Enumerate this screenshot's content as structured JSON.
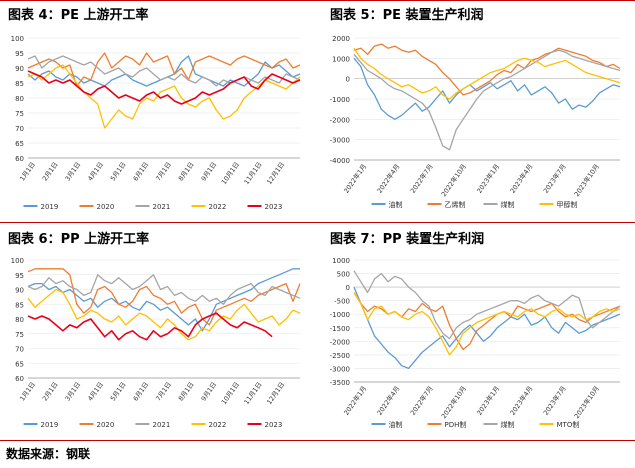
{
  "titles": {
    "c4": "图表 4：PE 上游开工率",
    "c5": "图表 5：PE 装置生产利润",
    "c6": "图表 6：PP 上游开工率",
    "c7": "图表 7：PP 装置生产利润"
  },
  "source": "数据来源：钢联",
  "chart_data": [
    {
      "id": "c4",
      "type": "line",
      "title": "图表 4：PE 上游开工率",
      "ylim": [
        60,
        100
      ],
      "yticks": [
        "60",
        "65",
        "70",
        "75",
        "80",
        "85",
        "90",
        "95",
        "100"
      ],
      "xticks": [
        "1月1日",
        "2月1日",
        "3月1日",
        "4月1日",
        "5月1日",
        "6月1日",
        "7月1日",
        "8月1日",
        "9月1日",
        "10月1日",
        "11月1日",
        "12月1日"
      ],
      "series": [
        {
          "name": "2019",
          "color": "#5B9BD5",
          "values": [
            88,
            86,
            88,
            89,
            87,
            86,
            88,
            87,
            85,
            86,
            85,
            84,
            86,
            87,
            88,
            86,
            85,
            84,
            85,
            86,
            87,
            88,
            92,
            94,
            88,
            87,
            86,
            85,
            84,
            86,
            85,
            84,
            86,
            88,
            92,
            90,
            91,
            89,
            87,
            88
          ]
        },
        {
          "name": "2020",
          "color": "#ED7D31",
          "values": [
            90,
            91,
            92,
            93,
            92,
            90,
            91,
            84,
            87,
            86,
            92,
            95,
            90,
            92,
            94,
            93,
            91,
            95,
            92,
            93,
            94,
            88,
            90,
            86,
            92,
            93,
            94,
            93,
            92,
            91,
            93,
            94,
            93,
            92,
            91,
            90,
            92,
            93,
            90,
            91
          ]
        },
        {
          "name": "2021",
          "color": "#A5A5A5",
          "values": [
            93,
            94,
            90,
            92,
            93,
            94,
            93,
            92,
            91,
            92,
            90,
            88,
            89,
            90,
            88,
            87,
            89,
            90,
            88,
            86,
            87,
            86,
            88,
            86,
            85,
            87,
            86,
            84,
            86,
            85,
            86,
            87,
            86,
            85,
            87,
            86,
            85,
            88,
            87,
            86
          ]
        },
        {
          "name": "2022",
          "color": "#FFC000",
          "values": [
            87,
            88,
            86,
            88,
            90,
            91,
            88,
            85,
            82,
            80,
            78,
            70,
            73,
            76,
            74,
            73,
            78,
            80,
            79,
            82,
            83,
            84,
            80,
            78,
            77,
            79,
            80,
            76,
            73,
            74,
            76,
            80,
            82,
            84,
            86,
            85,
            84,
            83,
            85,
            87
          ]
        },
        {
          "name": "2023",
          "color": "#E8001C",
          "values": [
            89,
            88,
            87,
            85,
            86,
            85,
            86,
            84,
            82,
            81,
            83,
            84,
            82,
            80,
            81,
            80,
            79,
            81,
            82,
            80,
            81,
            79,
            78,
            79,
            80,
            82,
            81,
            82,
            83,
            85,
            86,
            87,
            84,
            83,
            86,
            88,
            87,
            86,
            85,
            86
          ]
        }
      ]
    },
    {
      "id": "c5",
      "type": "line",
      "title": "图表 5：PE 装置生产利润",
      "ylim": [
        -4000,
        2000
      ],
      "yticks": [
        "-4000",
        "-3000",
        "-2000",
        "-1000",
        "0",
        "1000",
        "2000"
      ],
      "xticks": [
        "2022年1月",
        "2022年4月",
        "2022年7月",
        "2022年10月",
        "2023年1月",
        "2023年4月",
        "2023年7月",
        "2023年10月"
      ],
      "series": [
        {
          "name": "油制",
          "color": "#5B9BD5",
          "values": [
            1000,
            600,
            -300,
            -800,
            -1500,
            -1800,
            -2000,
            -1800,
            -1500,
            -1200,
            -1600,
            -1400,
            -1000,
            -600,
            -1200,
            -800,
            -500,
            -300,
            -600,
            -400,
            -200,
            -500,
            -300,
            -100,
            -600,
            -300,
            -800,
            -600,
            -400,
            -700,
            -1200,
            -1000,
            -1500,
            -1300,
            -1400,
            -1100,
            -700,
            -500,
            -300,
            -400
          ]
        },
        {
          "name": "乙烯制",
          "color": "#ED7D31",
          "values": [
            1400,
            1500,
            1200,
            1600,
            1700,
            1500,
            1600,
            1400,
            1300,
            1400,
            1100,
            900,
            700,
            300,
            0,
            -400,
            -800,
            -700,
            -500,
            -300,
            -100,
            200,
            400,
            300,
            700,
            500,
            900,
            1000,
            1200,
            1300,
            1500,
            1400,
            1300,
            1200,
            1100,
            900,
            800,
            600,
            700,
            500
          ]
        },
        {
          "name": "煤制",
          "color": "#A5A5A5",
          "values": [
            1200,
            800,
            400,
            200,
            0,
            -300,
            -500,
            -600,
            -800,
            -1000,
            -1200,
            -1600,
            -2400,
            -3300,
            -3500,
            -2500,
            -2000,
            -1500,
            -1000,
            -600,
            -400,
            -200,
            0,
            100,
            300,
            500,
            700,
            900,
            1100,
            1300,
            1400,
            1300,
            1100,
            1000,
            900,
            800,
            700,
            600,
            500,
            400
          ]
        },
        {
          "name": "甲醇制",
          "color": "#FFC000",
          "values": [
            1500,
            1000,
            700,
            500,
            200,
            0,
            -200,
            -400,
            -300,
            -500,
            -700,
            -600,
            -400,
            -800,
            -1000,
            -700,
            -500,
            -300,
            -100,
            100,
            300,
            400,
            500,
            700,
            900,
            1000,
            900,
            800,
            600,
            700,
            800,
            900,
            700,
            500,
            300,
            200,
            100,
            0,
            -100,
            -200
          ]
        }
      ]
    },
    {
      "id": "c6",
      "type": "line",
      "title": "图表 6：PP 上游开工率",
      "ylim": [
        60,
        100
      ],
      "yticks": [
        "60",
        "65",
        "70",
        "75",
        "80",
        "85",
        "90",
        "95",
        "100"
      ],
      "xticks": [
        "1月1日",
        "2月1日",
        "3月1日",
        "4月1日",
        "5月1日",
        "6月1日",
        "7月1日",
        "8月1日",
        "9月1日",
        "10月1日",
        "11月1日",
        "12月1日"
      ],
      "series": [
        {
          "name": "2019",
          "color": "#5B9BD5",
          "values": [
            91,
            92,
            92,
            90,
            91,
            89,
            90,
            88,
            86,
            87,
            84,
            86,
            87,
            85,
            86,
            84,
            83,
            86,
            85,
            83,
            84,
            82,
            80,
            78,
            80,
            76,
            80,
            85,
            86,
            87,
            88,
            89,
            90,
            92,
            93,
            94,
            95,
            96,
            97,
            97
          ]
        },
        {
          "name": "2020",
          "color": "#ED7D31",
          "values": [
            96,
            97,
            97,
            97,
            97,
            97,
            95,
            85,
            82,
            84,
            90,
            91,
            89,
            85,
            84,
            86,
            90,
            91,
            88,
            87,
            85,
            86,
            82,
            84,
            85,
            80,
            78,
            83,
            84,
            85,
            86,
            87,
            86,
            88,
            89,
            90,
            91,
            92,
            86,
            92
          ]
        },
        {
          "name": "2021",
          "color": "#A5A5A5",
          "values": [
            91,
            90,
            91,
            94,
            92,
            93,
            91,
            90,
            88,
            89,
            95,
            93,
            92,
            94,
            92,
            90,
            91,
            93,
            95,
            90,
            91,
            88,
            89,
            87,
            86,
            88,
            86,
            87,
            85,
            88,
            90,
            91,
            92,
            89,
            88,
            91,
            90,
            89,
            88,
            87
          ]
        },
        {
          "name": "2022",
          "color": "#FFC000",
          "values": [
            87,
            84,
            86,
            88,
            90,
            89,
            85,
            80,
            81,
            83,
            82,
            80,
            79,
            81,
            78,
            80,
            82,
            81,
            79,
            77,
            80,
            78,
            75,
            73,
            74,
            77,
            76,
            79,
            81,
            80,
            83,
            85,
            82,
            79,
            80,
            81,
            78,
            80,
            83,
            82
          ]
        },
        {
          "name": "2023",
          "color": "#E8001C",
          "values": [
            81,
            80,
            81,
            80,
            78,
            76,
            78,
            77,
            79,
            80,
            77,
            74,
            76,
            73,
            75,
            76,
            74,
            73,
            76,
            74,
            75,
            77,
            76,
            74,
            78,
            80,
            81,
            82,
            80,
            78,
            77,
            79,
            78,
            77,
            76,
            74,
            null,
            null,
            null,
            null
          ]
        }
      ]
    },
    {
      "id": "c7",
      "type": "line",
      "title": "图表 7：PP 装置生产利润",
      "ylim": [
        -3500,
        1000
      ],
      "yticks": [
        "-3500",
        "-3000",
        "-2500",
        "-2000",
        "-1500",
        "-1000",
        "-500",
        "0",
        "500",
        "1000"
      ],
      "xticks": [
        "2022年1月",
        "2022年4月",
        "2022年7月",
        "2022年10月",
        "2023年1月",
        "2023年4月",
        "2023年7月",
        "2023年10月"
      ],
      "series": [
        {
          "name": "油制",
          "color": "#5B9BD5",
          "values": [
            0,
            -600,
            -1200,
            -1800,
            -2100,
            -2400,
            -2600,
            -2900,
            -3000,
            -2700,
            -2400,
            -2200,
            -2000,
            -1800,
            -2200,
            -1900,
            -1600,
            -1400,
            -1700,
            -2000,
            -1800,
            -1500,
            -1300,
            -1100,
            -1200,
            -1000,
            -1400,
            -1300,
            -1100,
            -1500,
            -1700,
            -1300,
            -1500,
            -1700,
            -1600,
            -1400,
            -1300,
            -1200,
            -1100,
            -1000
          ]
        },
        {
          "name": "PDH制",
          "color": "#ED7D31",
          "values": [
            -200,
            -600,
            -900,
            -700,
            -800,
            -1000,
            -900,
            -1100,
            -800,
            -900,
            -600,
            -800,
            -900,
            -700,
            -1400,
            -1900,
            -2300,
            -2100,
            -1600,
            -1400,
            -1200,
            -1000,
            -900,
            -1100,
            -700,
            -800,
            -900,
            -800,
            -700,
            -600,
            -900,
            -1100,
            -1000,
            -1200,
            -1300,
            -1100,
            -1000,
            -900,
            -800,
            -700
          ]
        },
        {
          "name": "煤制",
          "color": "#A5A5A5",
          "values": [
            600,
            200,
            -200,
            300,
            500,
            200,
            400,
            300,
            0,
            -200,
            -500,
            -700,
            -1300,
            -1700,
            -1900,
            -1500,
            -1300,
            -1200,
            -1000,
            -900,
            -800,
            -700,
            -600,
            -500,
            -500,
            -600,
            -400,
            -300,
            -500,
            -600,
            -700,
            -500,
            -300,
            -400,
            -1200,
            -1500,
            -1300,
            -1100,
            -900,
            -700
          ]
        },
        {
          "name": "MTO制",
          "color": "#FFC000",
          "values": [
            -200,
            -600,
            -1200,
            -800,
            -700,
            -1000,
            -900,
            -1100,
            -1200,
            -1000,
            -900,
            -1100,
            -1500,
            -2000,
            -2500,
            -2200,
            -1700,
            -1500,
            -1300,
            -1200,
            -1100,
            -1000,
            -900,
            -1000,
            -1100,
            -900,
            -800,
            -1000,
            -1100,
            -900,
            -800,
            -1000,
            -1100,
            -1000,
            -1200,
            -1100,
            -900,
            -800,
            -900,
            -800
          ]
        }
      ]
    }
  ]
}
